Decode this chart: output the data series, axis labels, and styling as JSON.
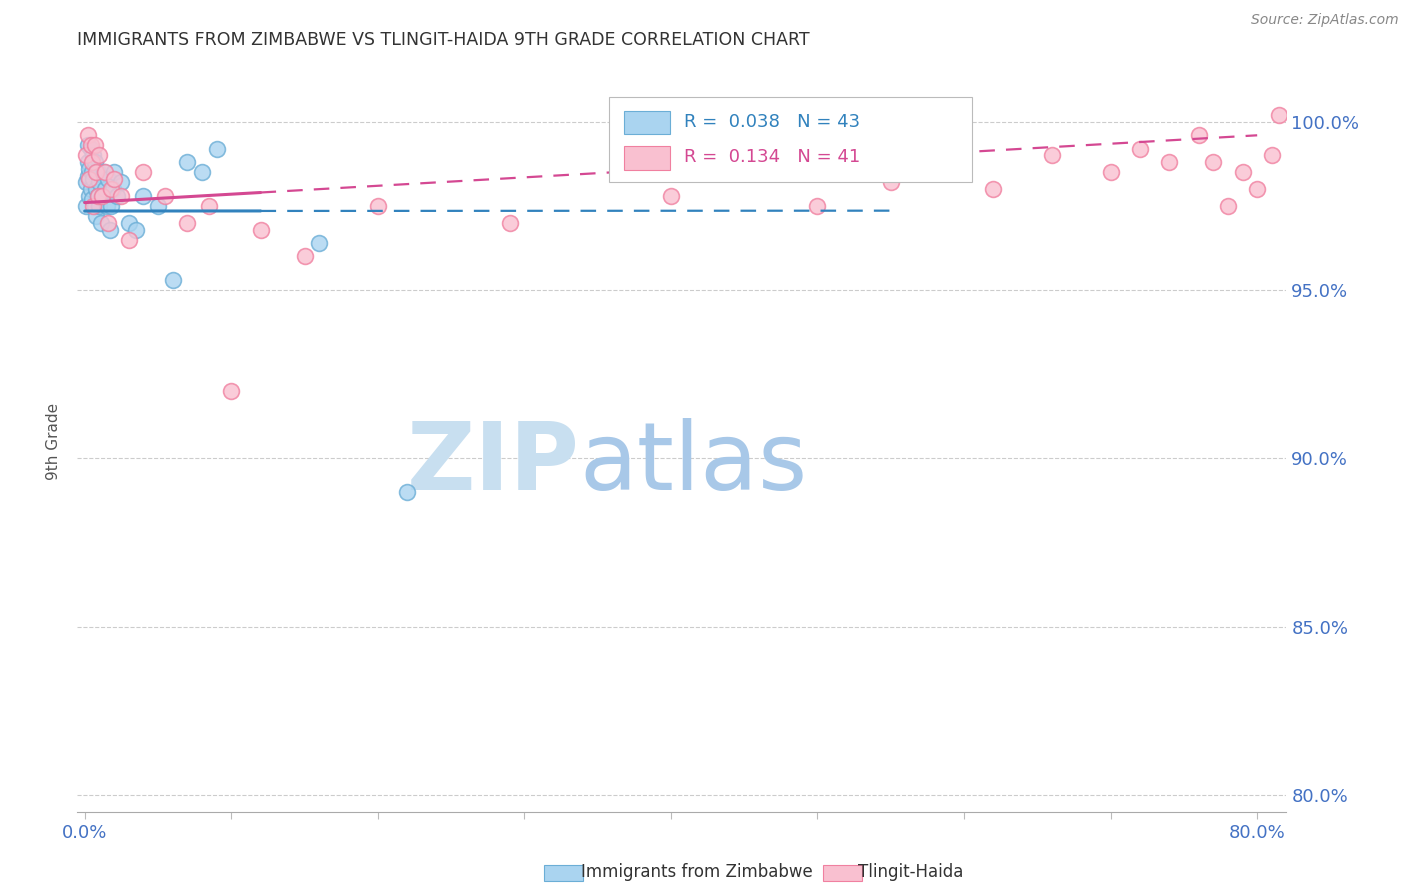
{
  "title": "IMMIGRANTS FROM ZIMBABWE VS TLINGIT-HAIDA 9TH GRADE CORRELATION CHART",
  "source": "Source: ZipAtlas.com",
  "ylabel": "9th Grade",
  "xlim": [
    -0.005,
    0.82
  ],
  "ylim": [
    0.795,
    1.015
  ],
  "yticks": [
    0.8,
    0.85,
    0.9,
    0.95,
    1.0
  ],
  "ytick_labels": [
    "80.0%",
    "85.0%",
    "90.0%",
    "95.0%",
    "100.0%"
  ],
  "xticks": [
    0.0,
    0.1,
    0.2,
    0.3,
    0.4,
    0.5,
    0.6,
    0.7,
    0.8
  ],
  "xtick_labels": [
    "0.0%",
    "",
    "",
    "",
    "",
    "",
    "",
    "",
    "80.0%"
  ],
  "blue_scatter_x": [
    0.001,
    0.001,
    0.002,
    0.002,
    0.002,
    0.003,
    0.003,
    0.004,
    0.004,
    0.005,
    0.005,
    0.006,
    0.006,
    0.007,
    0.007,
    0.008,
    0.008,
    0.009,
    0.009,
    0.01,
    0.01,
    0.011,
    0.012,
    0.013,
    0.014,
    0.015,
    0.016,
    0.017,
    0.018,
    0.019,
    0.02,
    0.022,
    0.025,
    0.03,
    0.035,
    0.04,
    0.05,
    0.06,
    0.07,
    0.08,
    0.09,
    0.16,
    0.22
  ],
  "blue_scatter_y": [
    0.975,
    0.982,
    0.984,
    0.988,
    0.993,
    0.986,
    0.978,
    0.992,
    0.98,
    0.985,
    0.977,
    0.99,
    0.983,
    0.975,
    0.988,
    0.98,
    0.972,
    0.985,
    0.978,
    0.982,
    0.975,
    0.97,
    0.978,
    0.985,
    0.98,
    0.975,
    0.983,
    0.968,
    0.975,
    0.98,
    0.985,
    0.978,
    0.982,
    0.97,
    0.968,
    0.978,
    0.975,
    0.953,
    0.988,
    0.985,
    0.992,
    0.964,
    0.89
  ],
  "pink_scatter_x": [
    0.001,
    0.002,
    0.003,
    0.004,
    0.005,
    0.006,
    0.007,
    0.008,
    0.009,
    0.01,
    0.012,
    0.014,
    0.016,
    0.018,
    0.02,
    0.025,
    0.03,
    0.04,
    0.055,
    0.07,
    0.085,
    0.1,
    0.12,
    0.15,
    0.2,
    0.29,
    0.4,
    0.5,
    0.55,
    0.62,
    0.66,
    0.7,
    0.72,
    0.74,
    0.76,
    0.77,
    0.78,
    0.79,
    0.8,
    0.81,
    0.815
  ],
  "pink_scatter_y": [
    0.99,
    0.996,
    0.983,
    0.993,
    0.988,
    0.975,
    0.993,
    0.985,
    0.978,
    0.99,
    0.978,
    0.985,
    0.97,
    0.98,
    0.983,
    0.978,
    0.965,
    0.985,
    0.978,
    0.97,
    0.975,
    0.92,
    0.968,
    0.96,
    0.975,
    0.97,
    0.978,
    0.975,
    0.982,
    0.98,
    0.99,
    0.985,
    0.992,
    0.988,
    0.996,
    0.988,
    0.975,
    0.985,
    0.98,
    0.99,
    1.002
  ],
  "blue_line_color": "#3182bd",
  "pink_line_color": "#d44892",
  "blue_scatter_face": "#aad4f0",
  "blue_scatter_edge": "#6baed6",
  "pink_scatter_face": "#f9c0d0",
  "pink_scatter_edge": "#f080a0",
  "axis_color": "#4472C4",
  "title_color": "#333333",
  "background_color": "#ffffff",
  "watermark_zip": "ZIP",
  "watermark_atlas": "atlas",
  "watermark_color_zip": "#c8dff0",
  "watermark_color_atlas": "#a8c8e8"
}
